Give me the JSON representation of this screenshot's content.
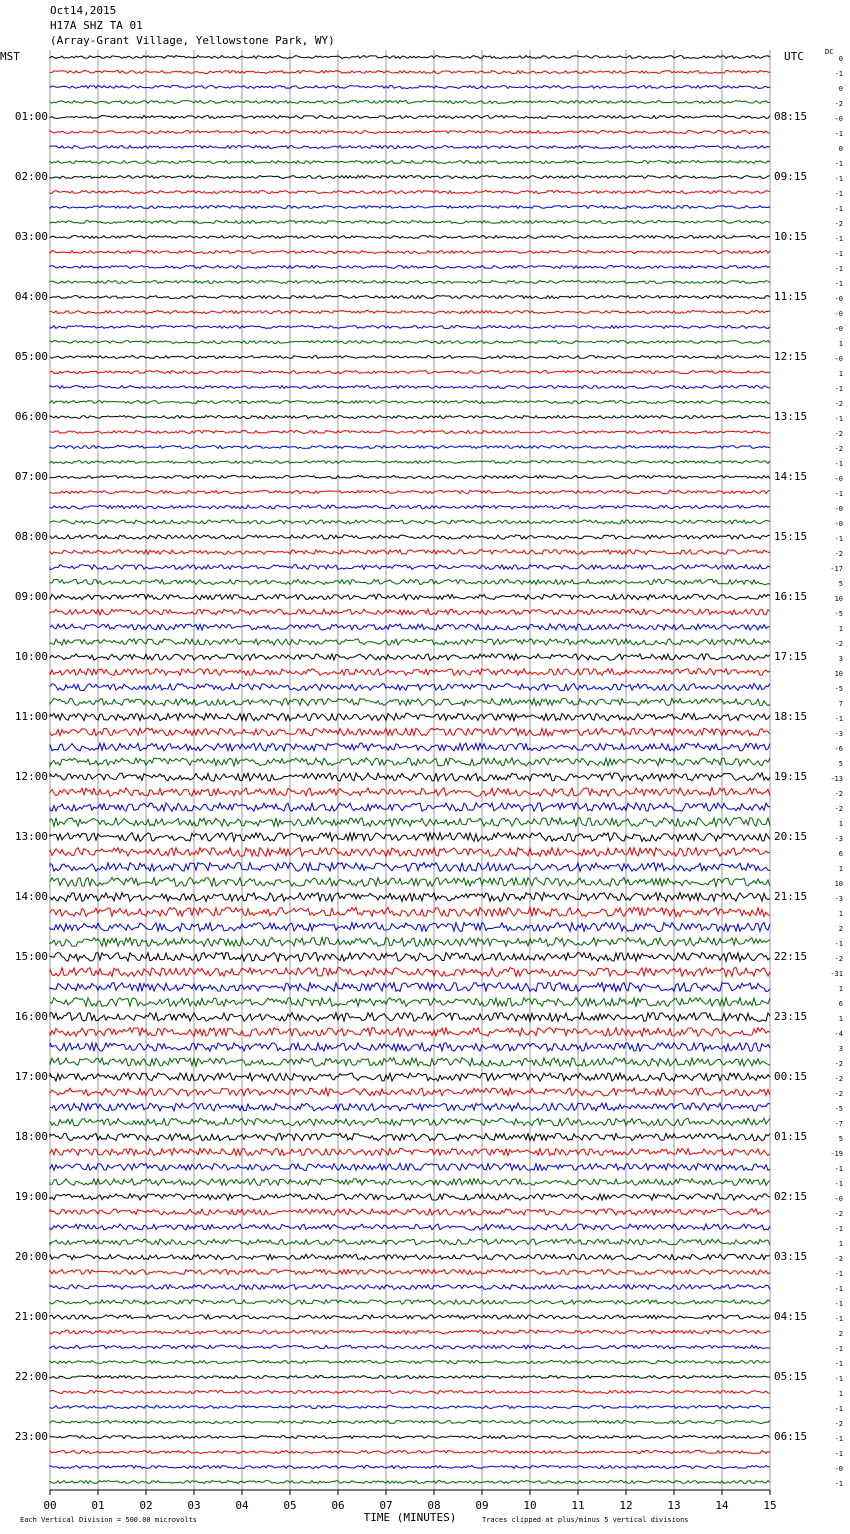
{
  "chart_data": {
    "type": "helicorder",
    "title_lines": [
      "Oct14,2015",
      "H17A SHZ TA 01",
      "(Array-Grant Village, Yellowstone Park, WY)"
    ],
    "left_header": "MST",
    "right_header": "UTC",
    "dc_header": "DC",
    "left_labels": [
      "01:00",
      "02:00",
      "03:00",
      "04:00",
      "05:00",
      "06:00",
      "07:00",
      "08:00",
      "09:00",
      "10:00",
      "11:00",
      "12:00",
      "13:00",
      "14:00",
      "15:00",
      "16:00",
      "17:00",
      "18:00",
      "19:00",
      "20:00",
      "21:00",
      "22:00",
      "23:00"
    ],
    "right_labels": [
      "08:15",
      "09:15",
      "10:15",
      "11:15",
      "12:15",
      "13:15",
      "14:15",
      "15:15",
      "16:15",
      "17:15",
      "18:15",
      "19:15",
      "20:15",
      "21:15",
      "22:15",
      "23:15",
      "00:15",
      "01:15",
      "02:15",
      "03:15",
      "04:15",
      "05:15",
      "06:15"
    ],
    "dc_offsets": [
      "0",
      "-1",
      "0",
      "-2",
      "-0",
      "-1",
      "0",
      "-1",
      "-1",
      "-1",
      "-1",
      "-2",
      "-1",
      "-1",
      "-1",
      "-1",
      "-0",
      "-0",
      "-0",
      "1",
      "-0",
      "1",
      "-1",
      "-2",
      "-1",
      "-2",
      "-2",
      "-1",
      "-0",
      "-1",
      "-0",
      "-0",
      "-1",
      "-2",
      "-17",
      "5",
      "10",
      "-5",
      "1",
      "-2",
      "3",
      "10",
      "-5",
      "7",
      "-1",
      "-3",
      "-6",
      "5",
      "-13",
      "-2",
      "-2",
      "1",
      "-3",
      "6",
      "1",
      "10",
      "-3",
      "1",
      "2",
      "-1",
      "-2",
      "-31",
      "1",
      "6",
      "1",
      "-4",
      "3",
      "-2",
      "-2",
      "-2",
      "-5",
      "-7",
      "5",
      "-19",
      "-1",
      "-1",
      "-0",
      "-2",
      "-1",
      "1",
      "-2",
      "-1",
      "-1",
      "-1",
      "-1",
      "2",
      "-1",
      "-1",
      "-1",
      "1",
      "-1",
      "-2",
      "-1",
      "-1",
      "-0",
      "-1"
    ],
    "trace_colors": [
      "#000000",
      "#e00000",
      "#0000d0",
      "#006400"
    ],
    "xlim": [
      0,
      15
    ],
    "xticks": [
      {
        "value": 0,
        "label": "00"
      },
      {
        "value": 1,
        "label": "01"
      },
      {
        "value": 2,
        "label": "02"
      },
      {
        "value": 3,
        "label": "03"
      },
      {
        "value": 4,
        "label": "04"
      },
      {
        "value": 5,
        "label": "05"
      },
      {
        "value": 6,
        "label": "06"
      },
      {
        "value": 7,
        "label": "07"
      },
      {
        "value": 8,
        "label": "08"
      },
      {
        "value": 9,
        "label": "09"
      },
      {
        "value": 10,
        "label": "10"
      },
      {
        "value": 11,
        "label": "11"
      },
      {
        "value": 12,
        "label": "12"
      },
      {
        "value": 13,
        "label": "13"
      },
      {
        "value": 14,
        "label": "14"
      },
      {
        "value": 15,
        "label": "15"
      }
    ],
    "xlabel": "TIME (MINUTES)",
    "scale_note": "Each Vertical Division =  500.00 microvolts",
    "clip_note": "Traces clipped at plus/minus 5 vertical divisions",
    "grid": true
  }
}
